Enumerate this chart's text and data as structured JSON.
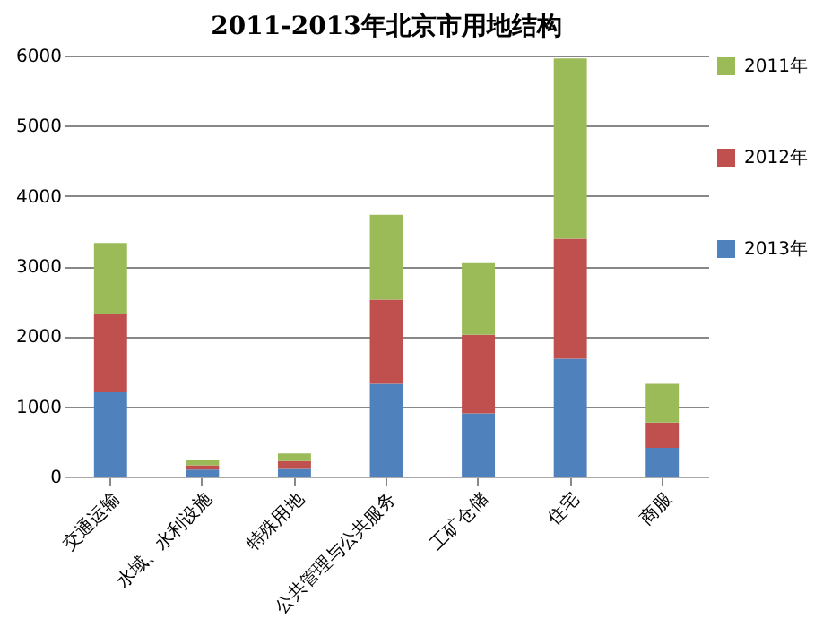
{
  "chart_data": {
    "type": "bar",
    "title": "2011-2013年北京市用地结构",
    "stacked": true,
    "categories": [
      "交通运输",
      "水域、水利设施",
      "特殊用地",
      "公共管理与公共服务",
      "工矿仓储",
      "住宅",
      "商服"
    ],
    "series": [
      {
        "name": "2013年",
        "color": "#4f81bd",
        "values": [
          1200,
          100,
          110,
          1320,
          900,
          1680,
          410
        ]
      },
      {
        "name": "2012年",
        "color": "#c0504d",
        "values": [
          1120,
          60,
          110,
          1200,
          1120,
          1710,
          360
        ]
      },
      {
        "name": "2011年",
        "color": "#9bbb59",
        "values": [
          1010,
          80,
          110,
          1210,
          1020,
          2570,
          550
        ]
      }
    ],
    "ylim": [
      0,
      6000
    ],
    "yticks": [
      0,
      1000,
      2000,
      3000,
      4000,
      5000,
      6000
    ],
    "grid": "y",
    "legend": "right"
  }
}
